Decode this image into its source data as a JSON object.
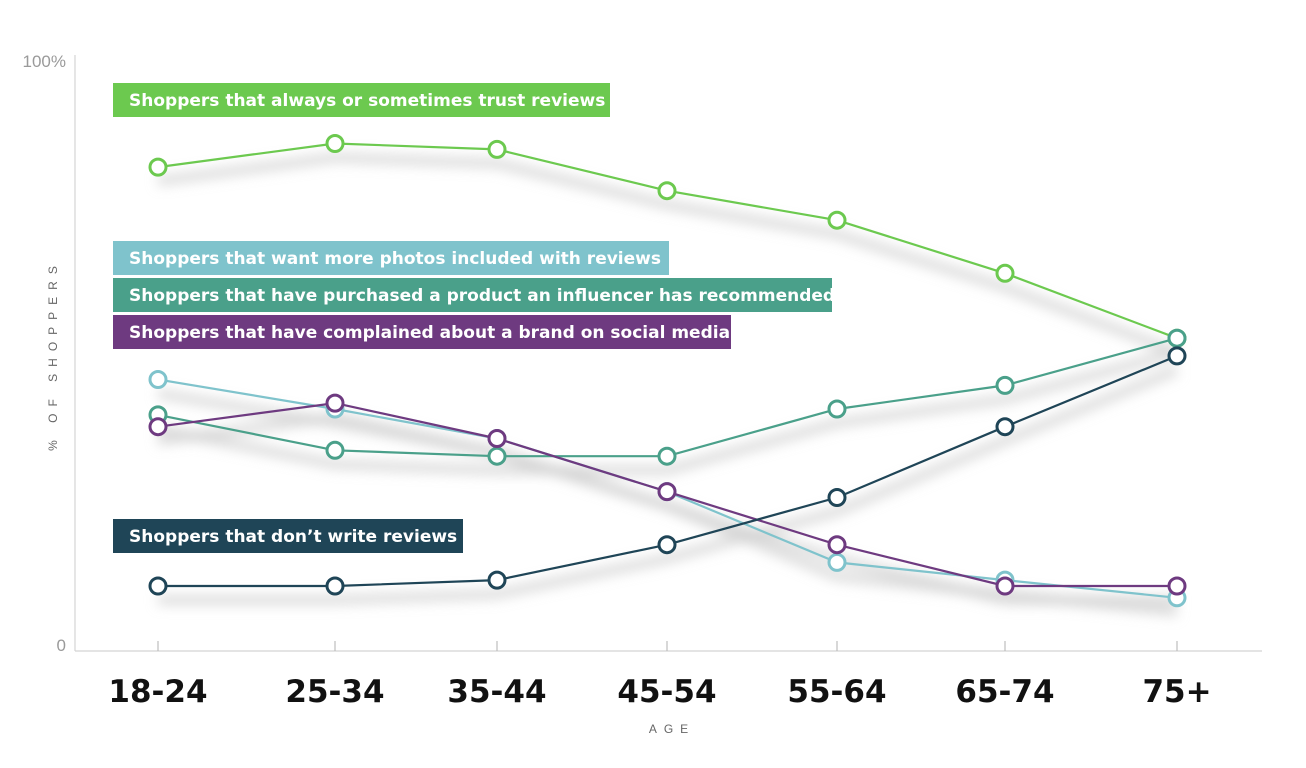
{
  "chart_data": {
    "type": "line",
    "categories": [
      "18-24",
      "25-34",
      "35-44",
      "45-54",
      "55-64",
      "65-74",
      "75+"
    ],
    "ylim": [
      0,
      100
    ],
    "y_ticks": [
      "0",
      "100%"
    ],
    "xlabel": "AGE",
    "ylabel": "% OF SHOPPERS",
    "grid": false,
    "series": [
      {
        "name": "Shoppers that always or sometimes trust reviews",
        "color": "#6cc94f",
        "values": [
          81,
          85,
          84,
          77,
          72,
          63,
          52
        ]
      },
      {
        "name": "Shoppers that want more photos included with reviews",
        "color": "#7fc3cc",
        "values": [
          45,
          40,
          35,
          26,
          14,
          11,
          8
        ]
      },
      {
        "name": "Shoppers that have purchased a product an influencer has recommended",
        "color": "#4aa08a",
        "values": [
          39,
          33,
          32,
          32,
          40,
          44,
          52
        ]
      },
      {
        "name": "Shoppers that have complained about a brand on social media",
        "color": "#6e3a80",
        "values": [
          37,
          41,
          35,
          26,
          17,
          10,
          10
        ]
      },
      {
        "name": "Shoppers that don’t write reviews",
        "color": "#1f4557",
        "values": [
          10,
          10,
          11,
          17,
          25,
          37,
          49
        ]
      }
    ]
  }
}
